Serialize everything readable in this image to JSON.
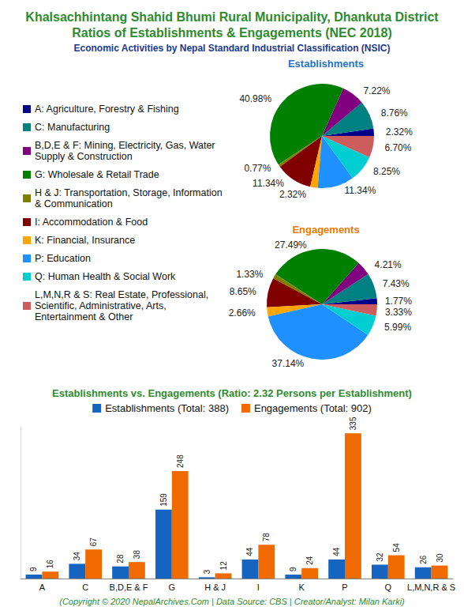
{
  "title": [
    "Khalsachhintang Shahid Bhumi Rural Municipality, Dhankuta District",
    "Ratios of Establishments & Engagements (NEC 2018)"
  ],
  "subtitle": "Economic Activities by Nepal Standard Industrial Classification (NSIC)",
  "footer": "(Copyright © 2020 NepalArchives.Com | Data Source: CBS | Creator/Analyst: Milan Karki)",
  "chart_data": [
    {
      "type": "pie",
      "title": "Establishments",
      "legend": "left",
      "data_labels": true,
      "categories": [
        "A: Agriculture, Forestry & Fishing",
        "C: Manufacturing",
        "B,D,E & F: Mining, Electricity, Gas, Water Supply & Construction",
        "G: Wholesale & Retail Trade",
        "H & J: Transportation, Storage, Information & Communication",
        "I: Accommodation & Food",
        "K: Financial, Insurance",
        "P: Education",
        "Q: Human Health & Social Work",
        "L,M,N,R & S: Real Estate, Professional, Scientific, Administrative, Arts, Entertainment & Other"
      ],
      "values": [
        2.32,
        8.76,
        7.22,
        40.98,
        0.77,
        11.34,
        2.32,
        11.34,
        8.25,
        6.7
      ],
      "value_labels": [
        "2.32%",
        "8.76%",
        "7.22%",
        "40.98%",
        "0.77%",
        "11.34%",
        "2.32%",
        "11.34%",
        "8.25%",
        "6.70%"
      ],
      "colors": [
        "#00008b",
        "#008080",
        "#800080",
        "#008000",
        "#808000",
        "#800000",
        "#ffa500",
        "#1e90ff",
        "#00ced1",
        "#cd5c5c"
      ]
    },
    {
      "type": "pie",
      "title": "Engagements",
      "data_labels": true,
      "categories": [
        "A: Agriculture, Forestry & Fishing",
        "C: Manufacturing",
        "B,D,E & F: Mining, Electricity, Gas, Water Supply & Construction",
        "G: Wholesale & Retail Trade",
        "H & J: Transportation, Storage, Information & Communication",
        "I: Accommodation & Food",
        "K: Financial, Insurance",
        "P: Education",
        "Q: Human Health & Social Work",
        "L,M,N,R & S: Real Estate, Professional, Scientific, Administrative, Arts, Entertainment & Other"
      ],
      "values": [
        1.77,
        7.43,
        4.21,
        27.49,
        1.33,
        8.65,
        2.66,
        37.14,
        5.99,
        3.33
      ],
      "value_labels": [
        "1.77%",
        "7.43%",
        "4.21%",
        "27.49%",
        "1.33%",
        "8.65%",
        "2.66%",
        "37.14%",
        "5.99%",
        "3.33%"
      ],
      "colors": [
        "#00008b",
        "#008080",
        "#800080",
        "#008000",
        "#808000",
        "#800000",
        "#ffa500",
        "#1e90ff",
        "#00ced1",
        "#cd5c5c"
      ]
    },
    {
      "type": "bar",
      "title": "Establishments vs. Engagements (Ratio: 2.32 Persons per Establishment)",
      "legend": "top",
      "data_labels": true,
      "tick_labels": "x",
      "grid": false,
      "categories": [
        "A",
        "C",
        "B,D,E & F",
        "G",
        "H & J",
        "I",
        "K",
        "P",
        "Q",
        "L,M,N,R & S"
      ],
      "series": [
        {
          "name": "Establishments (Total: 388)",
          "color": "#1565c0",
          "values": [
            9,
            34,
            28,
            159,
            3,
            44,
            9,
            44,
            32,
            26
          ]
        },
        {
          "name": "Engagements (Total: 902)",
          "color": "#f06a00",
          "values": [
            16,
            67,
            38,
            248,
            12,
            78,
            24,
            335,
            54,
            30
          ]
        }
      ],
      "ylim": [
        0,
        350
      ]
    }
  ]
}
